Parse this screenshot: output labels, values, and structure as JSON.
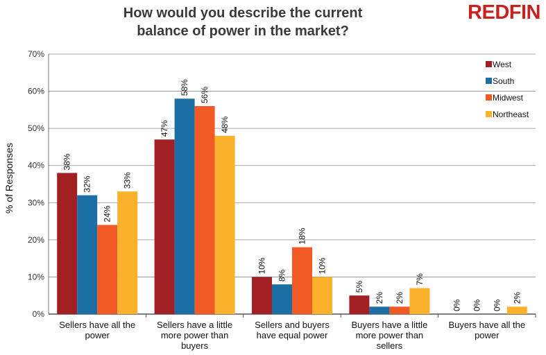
{
  "brand": "REDFIN",
  "chart_data": {
    "type": "bar",
    "title_lines": [
      "How would you describe the current",
      "balance of power in the market?"
    ],
    "ylabel": "% of Responses",
    "xlabel": "",
    "ylim": [
      0,
      70
    ],
    "yticks": [
      0,
      10,
      20,
      30,
      40,
      50,
      60,
      70
    ],
    "grid": true,
    "legend_position": "top-right",
    "categories": [
      [
        "Sellers have all the",
        "power"
      ],
      [
        "Sellers have a little",
        "more power than",
        "buyers"
      ],
      [
        "Sellers and buyers",
        "have equal power"
      ],
      [
        "Buyers have a little",
        "more power than",
        "sellers"
      ],
      [
        "Buyers have all the",
        "power"
      ]
    ],
    "series": [
      {
        "name": "West",
        "color": "#a21f23",
        "values": [
          38,
          47,
          10,
          5,
          0
        ]
      },
      {
        "name": "South",
        "color": "#1b6fa5",
        "values": [
          32,
          58,
          8,
          2,
          0
        ]
      },
      {
        "name": "Midwest",
        "color": "#f15a24",
        "values": [
          24,
          56,
          18,
          2,
          0
        ]
      },
      {
        "name": "Northeast",
        "color": "#fbb12a",
        "values": [
          33,
          48,
          10,
          7,
          2
        ]
      }
    ]
  }
}
